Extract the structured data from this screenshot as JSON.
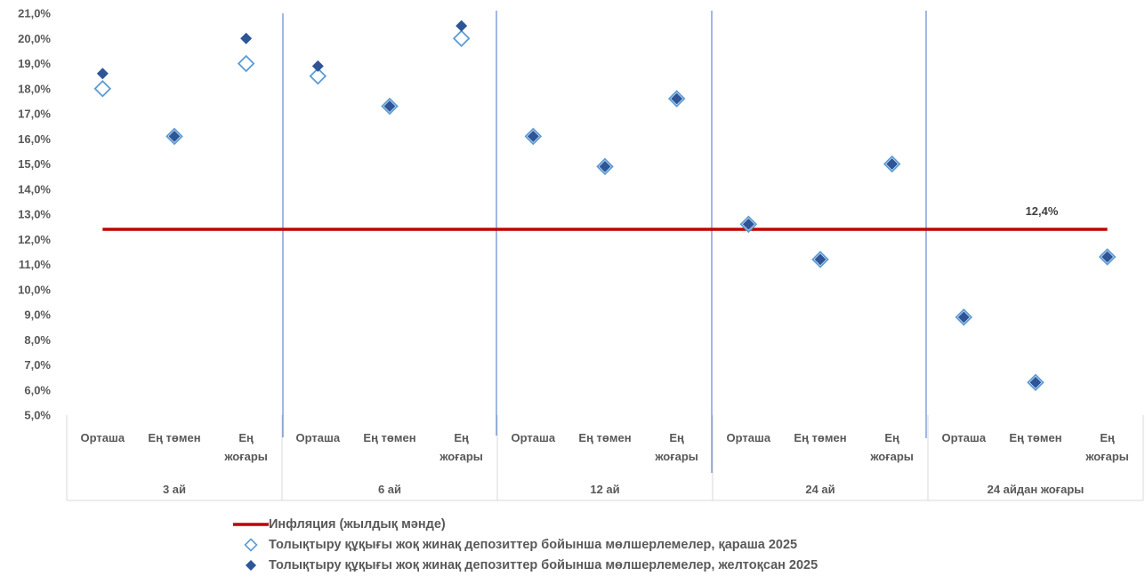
{
  "chart_data": {
    "type": "scatter",
    "ylim": [
      5.0,
      21.0
    ],
    "y_ticks": [
      "21,0%",
      "20,0%",
      "19,0%",
      "18,0%",
      "17,0%",
      "16,0%",
      "15,0%",
      "14,0%",
      "13,0%",
      "12,0%",
      "11,0%",
      "10,0%",
      "9,0%",
      "8,0%",
      "7,0%",
      "6,0%",
      "5,0%"
    ],
    "groups": [
      {
        "label": "3 ай",
        "categories": [
          [
            "Орташа"
          ],
          [
            "Ең төмен"
          ],
          [
            "Ең",
            "жоғары"
          ]
        ]
      },
      {
        "label": "6 ай",
        "categories": [
          [
            "Орташа"
          ],
          [
            "Ең төмен"
          ],
          [
            "Ең",
            "жоғары"
          ]
        ]
      },
      {
        "label": "12 ай",
        "categories": [
          [
            "Орташа"
          ],
          [
            "Ең төмен"
          ],
          [
            "Ең",
            "жоғары"
          ]
        ]
      },
      {
        "label": "24 ай",
        "categories": [
          [
            "Орташа"
          ],
          [
            "Ең төмен"
          ],
          [
            "Ең",
            "жоғары"
          ]
        ]
      },
      {
        "label": "24 айдан жоғары",
        "categories": [
          [
            "Орташа"
          ],
          [
            "Ең төмен"
          ],
          [
            "Ең",
            "жоғары"
          ]
        ]
      }
    ],
    "series": [
      {
        "name": "Толықтыру құқығы жоқ жинақ депозиттер бойынша мөлшерлемелер, қараша 2025",
        "marker": "diamond-open",
        "color": "#5b9bd5",
        "values": [
          18.0,
          16.1,
          19.0,
          18.5,
          17.3,
          20.0,
          16.1,
          14.9,
          17.6,
          12.6,
          11.2,
          15.0,
          8.9,
          6.3,
          11.3
        ]
      },
      {
        "name": "Толықтыру құқығы жоқ жинақ депозиттер бойынша мөлшерлемелер, желтоқсан 2025",
        "marker": "diamond-filled",
        "color": "#2e5597",
        "values": [
          18.6,
          16.1,
          20.0,
          18.9,
          17.3,
          20.5,
          16.1,
          14.9,
          17.6,
          12.6,
          11.2,
          15.0,
          8.9,
          6.3,
          11.3
        ]
      }
    ],
    "reference_line": {
      "name": "Инфляция (жылдық мәнде)",
      "value": 12.4,
      "label": "12,4%",
      "color": "#c00000"
    }
  },
  "legend": {
    "items": [
      "Инфляция (жылдық мәнде)",
      "Толықтыру құқығы жоқ жинақ депозиттер бойынша мөлшерлемелер, қараша 2025",
      "Толықтыру құқығы жоқ жинақ депозиттер бойынша мөлшерлемелер, желтоқсан 2025"
    ]
  }
}
